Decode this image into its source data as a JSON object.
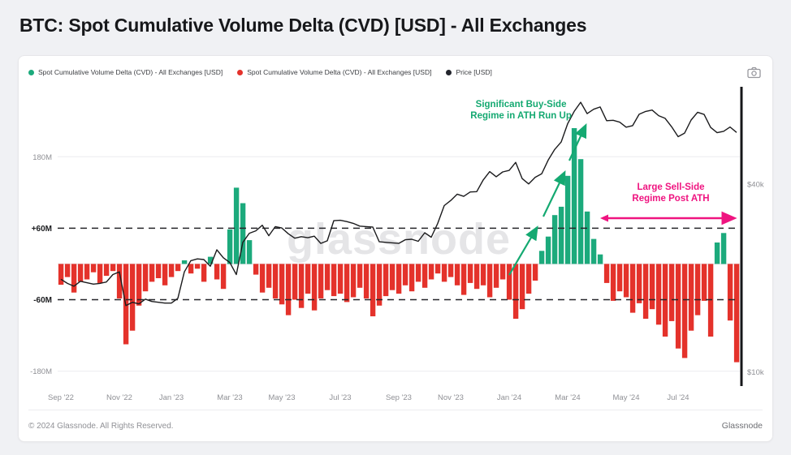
{
  "page": {
    "title": "BTC: Spot Cumulative Volume Delta (CVD) [USD] - All Exchanges",
    "watermark": "glassnode",
    "footer_left": "© 2024 Glassnode. All Rights Reserved.",
    "footer_right": "Glassnode"
  },
  "icons": {
    "screenshot_button": "camera-icon"
  },
  "legend": {
    "items": [
      {
        "label": "Spot Cumulative Volume Delta (CVD) - All Exchanges [USD]",
        "color": "#1caa7c"
      },
      {
        "label": "Spot Cumulative Volume Delta (CVD) - All Exchanges [USD]",
        "color": "#e4322b"
      },
      {
        "label": "Price [USD]",
        "color": "#23252d"
      }
    ]
  },
  "annotations": {
    "buy_side": {
      "line1": "Significant Buy-Side",
      "line2": "Regime in ATH Run Up",
      "color": "#14a971"
    },
    "sell_side": {
      "line1": "Large Sell-Side",
      "line2": "Regime Post ATH",
      "color": "#ef1480"
    }
  },
  "chart_data": {
    "type": "bar+line",
    "title": "BTC: Spot Cumulative Volume Delta (CVD) [USD] - All Exchanges",
    "legend_position": "top-left",
    "series": [
      {
        "name": "Spot CVD buy-side regime",
        "type": "bar",
        "color": "#1caa7c",
        "axis": "left"
      },
      {
        "name": "Spot CVD sell-side regime",
        "type": "bar",
        "color": "#e4322b",
        "axis": "left"
      },
      {
        "name": "Price [USD]",
        "type": "line",
        "color": "#1b1b1d",
        "axis": "right"
      }
    ],
    "x_ticks": [
      {
        "label": "Sep '22",
        "index": 0
      },
      {
        "label": "Nov '22",
        "index": 9
      },
      {
        "label": "Jan '23",
        "index": 17
      },
      {
        "label": "Mar '23",
        "index": 26
      },
      {
        "label": "May '23",
        "index": 34
      },
      {
        "label": "Jul '23",
        "index": 43
      },
      {
        "label": "Sep '23",
        "index": 52
      },
      {
        "label": "Nov '23",
        "index": 60
      },
      {
        "label": "Jan '24",
        "index": 69
      },
      {
        "label": "Mar '24",
        "index": 78
      },
      {
        "label": "May '24",
        "index": 87
      },
      {
        "label": "Jul '24",
        "index": 95
      }
    ],
    "y_left": {
      "unit": "M USD",
      "range": [
        -205,
        292
      ],
      "labels": [
        {
          "text": "180M",
          "value": 180,
          "emphasis": false
        },
        {
          "text": "+60M",
          "value": 60,
          "emphasis": true
        },
        {
          "text": "-60M",
          "value": -60,
          "emphasis": true
        },
        {
          "text": "-180M",
          "value": -180,
          "emphasis": false
        }
      ],
      "dashed_levels": [
        60,
        -60
      ],
      "grid_levels": [
        180,
        -180
      ]
    },
    "y_right": {
      "unit": "USD",
      "scale": "log",
      "range": [
        9000,
        80000
      ],
      "labels": [
        {
          "text": "$40k",
          "value": 40000
        },
        {
          "text": "$10k",
          "value": 10000
        }
      ]
    },
    "cvd_musd": [
      -35,
      -22,
      -48,
      -30,
      -26,
      -14,
      -32,
      -20,
      -12,
      -58,
      -135,
      -112,
      -70,
      -46,
      -30,
      -24,
      -36,
      -22,
      -12,
      6,
      -16,
      -8,
      -30,
      12,
      -26,
      -42,
      58,
      128,
      102,
      40,
      -18,
      -48,
      -40,
      -58,
      -68,
      -86,
      -60,
      -74,
      -50,
      -78,
      -58,
      -44,
      -54,
      -50,
      -64,
      -56,
      -40,
      -58,
      -88,
      -70,
      -54,
      -44,
      -50,
      -36,
      -46,
      -30,
      -40,
      -26,
      -16,
      -30,
      -22,
      -36,
      -52,
      -32,
      -42,
      -36,
      -56,
      -40,
      -26,
      -60,
      -92,
      -76,
      -50,
      -28,
      22,
      46,
      82,
      96,
      148,
      228,
      176,
      88,
      42,
      16,
      -32,
      -62,
      -46,
      -56,
      -82,
      -66,
      -92,
      -76,
      -102,
      -122,
      -96,
      -142,
      -158,
      -112,
      -86,
      -62,
      -122,
      36,
      52,
      -95,
      -165
    ],
    "price_usd": [
      19800,
      19200,
      18800,
      19500,
      19300,
      19100,
      19200,
      19400,
      20500,
      20900,
      16300,
      16700,
      16500,
      17100,
      16800,
      16700,
      16600,
      16600,
      17200,
      20900,
      22700,
      23000,
      22900,
      21800,
      24600,
      23200,
      22400,
      20500,
      26000,
      27800,
      28300,
      29500,
      27300,
      29200,
      28900,
      27700,
      26800,
      27100,
      26900,
      27200,
      25800,
      26300,
      30500,
      30600,
      30300,
      29900,
      29300,
      29200,
      29100,
      26100,
      26000,
      25900,
      25800,
      26500,
      26600,
      26200,
      27900,
      27000,
      29900,
      34100,
      35400,
      37100,
      36500,
      37700,
      37800,
      41200,
      43800,
      42200,
      43700,
      44200,
      46900,
      41600,
      40000,
      42000,
      43100,
      47700,
      51600,
      54500,
      62400,
      68300,
      73100,
      67200,
      69400,
      70600,
      63800,
      64000,
      63100,
      60800,
      61500,
      66900,
      68300,
      69000,
      66200,
      64900,
      61000,
      56700,
      58200,
      64100,
      67900,
      66800,
      60700,
      58400,
      59000,
      60900,
      58500
    ]
  }
}
